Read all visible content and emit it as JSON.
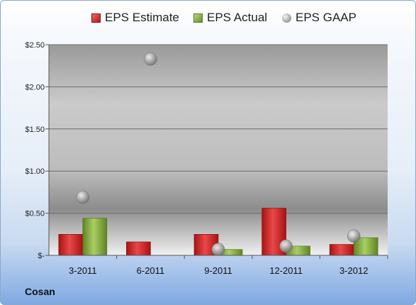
{
  "chart_data": {
    "type": "bar",
    "company": "Cosan",
    "categories": [
      "3-2011",
      "6-2011",
      "9-2011",
      "12-2011",
      "3-2012"
    ],
    "series": [
      {
        "name": "EPS Estimate",
        "kind": "bar",
        "color": "#c21f1f",
        "values": [
          0.25,
          0.16,
          0.25,
          0.56,
          0.13
        ]
      },
      {
        "name": "EPS Actual",
        "kind": "bar",
        "color": "#7ea33a",
        "values": [
          0.44,
          null,
          0.07,
          0.11,
          0.21
        ]
      },
      {
        "name": "EPS GAAP",
        "kind": "scatter",
        "color": "#a0a0a0",
        "values": [
          0.69,
          2.33,
          0.07,
          0.11,
          0.23
        ]
      }
    ],
    "ylim": [
      0,
      2.5
    ],
    "yticks": [
      0,
      0.5,
      1.0,
      1.5,
      2.0,
      2.5
    ],
    "ytick_labels": [
      "$-",
      "$0.50",
      "$1.00",
      "$1.50",
      "$2.00",
      "$2.50"
    ],
    "grid": true,
    "legend_position": "top"
  }
}
